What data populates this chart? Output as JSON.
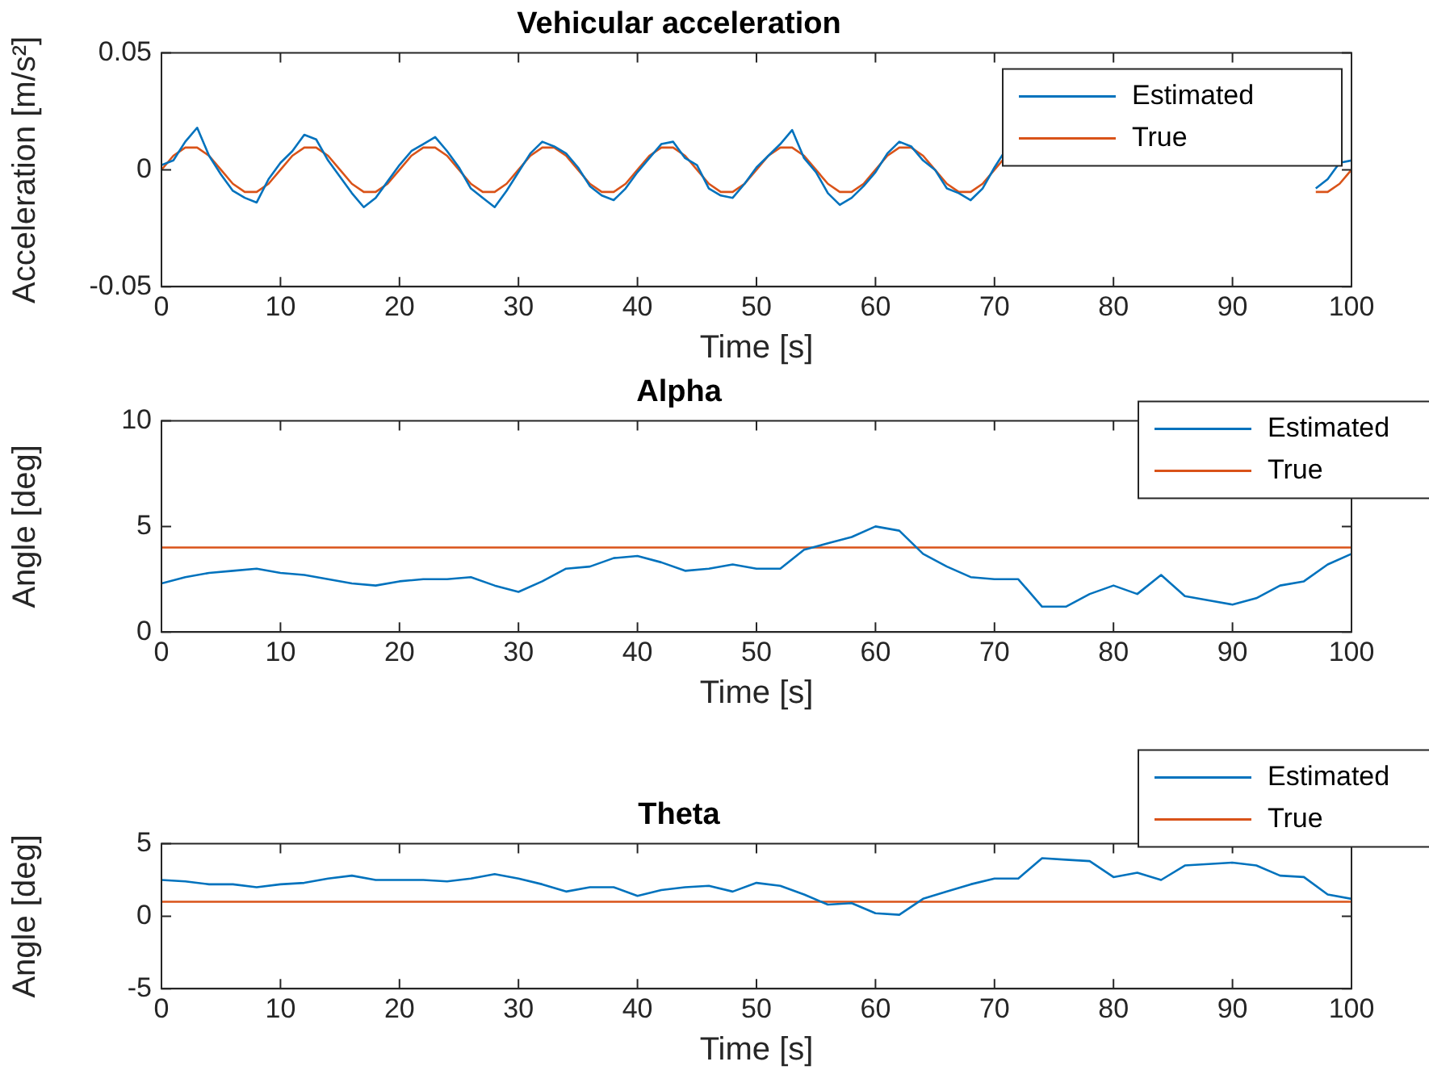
{
  "chart_data": [
    {
      "type": "line",
      "title": "Vehicular acceleration",
      "xlabel": "Time [s]",
      "ylabel": "Acceleration [m/s²]",
      "legend": "top right",
      "grid": false,
      "marker": "none",
      "line_style": "solid",
      "x": [
        0,
        1,
        2,
        3,
        4,
        5,
        6,
        7,
        8,
        9,
        10,
        11,
        12,
        13,
        14,
        15,
        16,
        17,
        18,
        19,
        20,
        21,
        22,
        23,
        24,
        25,
        26,
        27,
        28,
        29,
        30,
        31,
        32,
        33,
        34,
        35,
        36,
        37,
        38,
        39,
        40,
        41,
        42,
        43,
        44,
        45,
        46,
        47,
        48,
        49,
        50,
        51,
        52,
        53,
        54,
        55,
        56,
        57,
        58,
        59,
        60,
        61,
        62,
        63,
        64,
        65,
        66,
        67,
        68,
        69,
        70,
        71,
        72,
        73,
        74,
        75,
        76,
        77,
        78,
        79,
        80,
        81,
        82,
        83,
        84,
        85,
        86,
        87,
        88,
        89,
        90,
        91,
        92,
        93,
        94,
        95,
        96,
        97,
        98,
        99,
        100
      ],
      "xlim": [
        0,
        100
      ],
      "xticks": [
        0,
        10,
        20,
        30,
        40,
        50,
        60,
        70,
        80,
        90,
        100
      ],
      "ylim": [
        -0.05,
        0.05
      ],
      "yticks": [
        -0.05,
        0,
        0.05
      ],
      "series": [
        {
          "name": "Estimated",
          "color": "#0072bd",
          "values": [
            0.002,
            0.004,
            0.012,
            0.018,
            0.006,
            -0.002,
            -0.009,
            -0.012,
            -0.014,
            -0.004,
            0.003,
            0.008,
            0.015,
            0.013,
            0.004,
            -0.003,
            -0.01,
            -0.016,
            -0.012,
            -0.005,
            0.002,
            0.008,
            0.011,
            0.014,
            0.008,
            0.001,
            -0.008,
            -0.012,
            -0.016,
            -0.009,
            -0.001,
            0.007,
            0.012,
            0.01,
            0.007,
            0.001,
            -0.007,
            -0.011,
            -0.013,
            -0.008,
            -0.001,
            0.005,
            0.011,
            0.012,
            0.005,
            0.002,
            -0.008,
            -0.011,
            -0.012,
            -0.006,
            0.001,
            0.006,
            0.011,
            0.017,
            0.005,
            -0.001,
            -0.01,
            -0.015,
            -0.012,
            -0.007,
            -0.001,
            0.007,
            0.012,
            0.01,
            0.004,
            0,
            -0.008,
            -0.01,
            -0.013,
            -0.008,
            0.001,
            0.009,
            null,
            null,
            null,
            null,
            null,
            null,
            null,
            null,
            null,
            null,
            null,
            null,
            null,
            null,
            null,
            null,
            null,
            null,
            null,
            null,
            null,
            null,
            null,
            null,
            null,
            -0.008,
            -0.004,
            0.003,
            0.004
          ]
        },
        {
          "name": "True",
          "color": "#d95319",
          "values": [
            0,
            0.006,
            0.0095,
            0.0095,
            0.006,
            0,
            -0.006,
            -0.0095,
            -0.0095,
            -0.006,
            0,
            0.006,
            0.0095,
            0.0095,
            0.006,
            0,
            -0.006,
            -0.0095,
            -0.0095,
            -0.006,
            0,
            0.006,
            0.0095,
            0.0095,
            0.006,
            0,
            -0.006,
            -0.0095,
            -0.0095,
            -0.006,
            0,
            0.006,
            0.0095,
            0.0095,
            0.006,
            0,
            -0.006,
            -0.0095,
            -0.0095,
            -0.006,
            0,
            0.006,
            0.0095,
            0.0095,
            0.006,
            0,
            -0.006,
            -0.0095,
            -0.0095,
            -0.006,
            0,
            0.006,
            0.0095,
            0.0095,
            0.006,
            0,
            -0.006,
            -0.0095,
            -0.0095,
            -0.006,
            0,
            0.006,
            0.0095,
            0.0095,
            0.006,
            0,
            -0.006,
            -0.0095,
            -0.0095,
            -0.006,
            0,
            0.006,
            null,
            null,
            null,
            null,
            null,
            null,
            null,
            null,
            null,
            null,
            null,
            null,
            null,
            null,
            null,
            null,
            null,
            null,
            null,
            null,
            null,
            null,
            null,
            null,
            null,
            -0.0095,
            -0.0095,
            -0.006,
            0
          ]
        }
      ]
    },
    {
      "type": "line",
      "title": "Alpha",
      "xlabel": "Time [s]",
      "ylabel": "Angle [deg]",
      "legend": "top right",
      "grid": false,
      "marker": "none",
      "line_style": "solid",
      "x": [
        0,
        2,
        4,
        6,
        8,
        10,
        12,
        14,
        16,
        18,
        20,
        22,
        24,
        26,
        28,
        30,
        32,
        34,
        36,
        38,
        40,
        42,
        44,
        46,
        48,
        50,
        52,
        54,
        56,
        58,
        60,
        62,
        64,
        66,
        68,
        70,
        72,
        74,
        76,
        78,
        80,
        82,
        84,
        86,
        88,
        90,
        92,
        94,
        96,
        98,
        100
      ],
      "xlim": [
        0,
        100
      ],
      "xticks": [
        0,
        10,
        20,
        30,
        40,
        50,
        60,
        70,
        80,
        90,
        100
      ],
      "ylim": [
        0,
        10
      ],
      "yticks": [
        0,
        5,
        10
      ],
      "series": [
        {
          "name": "Estimated",
          "color": "#0072bd",
          "values": [
            2.3,
            2.6,
            2.8,
            2.9,
            3.0,
            2.8,
            2.7,
            2.5,
            2.3,
            2.2,
            2.4,
            2.5,
            2.5,
            2.6,
            2.2,
            1.9,
            2.4,
            3.0,
            3.1,
            3.5,
            3.6,
            3.3,
            2.9,
            3.0,
            3.2,
            3.0,
            3.0,
            3.9,
            4.2,
            4.5,
            5.0,
            4.8,
            3.7,
            3.1,
            2.6,
            2.5,
            2.5,
            1.2,
            1.2,
            1.8,
            2.2,
            1.8,
            2.7,
            1.7,
            1.5,
            1.3,
            1.6,
            2.2,
            2.4,
            3.2,
            3.7
          ]
        },
        {
          "name": "True",
          "color": "#d95319",
          "values": [
            4,
            4,
            4,
            4,
            4,
            4,
            4,
            4,
            4,
            4,
            4,
            4,
            4,
            4,
            4,
            4,
            4,
            4,
            4,
            4,
            4,
            4,
            4,
            4,
            4,
            4,
            4,
            4,
            4,
            4,
            4,
            4,
            4,
            4,
            4,
            4,
            4,
            4,
            4,
            4,
            4,
            4,
            4,
            4,
            4,
            4,
            4,
            4,
            4,
            4,
            4
          ]
        }
      ]
    },
    {
      "type": "line",
      "title": "Theta",
      "xlabel": "Time [s]",
      "ylabel": "Angle [deg]",
      "legend": "top right",
      "grid": false,
      "marker": "none",
      "line_style": "solid",
      "x": [
        0,
        2,
        4,
        6,
        8,
        10,
        12,
        14,
        16,
        18,
        20,
        22,
        24,
        26,
        28,
        30,
        32,
        34,
        36,
        38,
        40,
        42,
        44,
        46,
        48,
        50,
        52,
        54,
        56,
        58,
        60,
        62,
        64,
        66,
        68,
        70,
        72,
        74,
        76,
        78,
        80,
        82,
        84,
        86,
        88,
        90,
        92,
        94,
        96,
        98,
        100
      ],
      "xlim": [
        0,
        100
      ],
      "xticks": [
        0,
        10,
        20,
        30,
        40,
        50,
        60,
        70,
        80,
        90,
        100
      ],
      "ylim": [
        -5,
        5
      ],
      "yticks": [
        -5,
        0,
        5
      ],
      "series": [
        {
          "name": "Estimated",
          "color": "#0072bd",
          "values": [
            2.5,
            2.4,
            2.2,
            2.2,
            2.0,
            2.2,
            2.3,
            2.6,
            2.8,
            2.5,
            2.5,
            2.5,
            2.4,
            2.6,
            2.9,
            2.6,
            2.2,
            1.7,
            2.0,
            2.0,
            1.4,
            1.8,
            2.0,
            2.1,
            1.7,
            2.3,
            2.1,
            1.5,
            0.8,
            0.9,
            0.2,
            0.1,
            1.2,
            1.7,
            2.2,
            2.6,
            2.6,
            4.0,
            3.9,
            3.8,
            2.7,
            3.0,
            2.5,
            3.5,
            3.6,
            3.7,
            3.5,
            2.8,
            2.7,
            1.5,
            1.2
          ]
        },
        {
          "name": "True",
          "color": "#d95319",
          "values": [
            1,
            1,
            1,
            1,
            1,
            1,
            1,
            1,
            1,
            1,
            1,
            1,
            1,
            1,
            1,
            1,
            1,
            1,
            1,
            1,
            1,
            1,
            1,
            1,
            1,
            1,
            1,
            1,
            1,
            1,
            1,
            1,
            1,
            1,
            1,
            1,
            1,
            1,
            1,
            1,
            1,
            1,
            1,
            1,
            1,
            1,
            1,
            1,
            1,
            1,
            1
          ]
        }
      ]
    }
  ]
}
